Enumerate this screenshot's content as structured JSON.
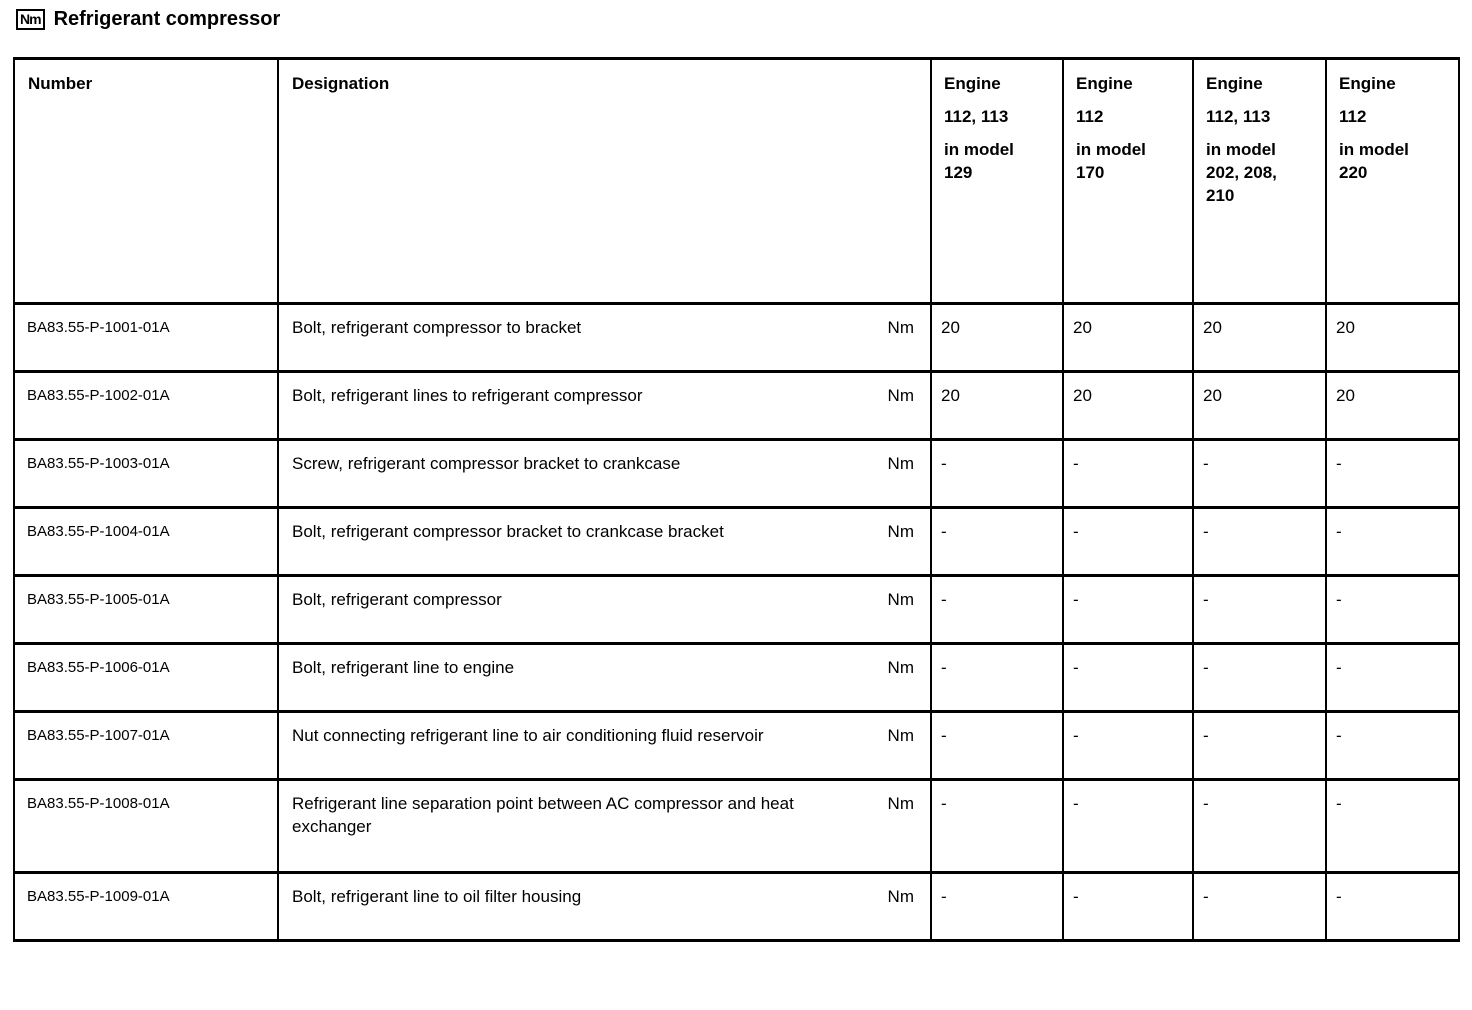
{
  "page": {
    "unit_badge": "Nm",
    "title": "Refrigerant compressor"
  },
  "colors": {
    "text": "#000000",
    "border": "#000000",
    "background": "#ffffff"
  },
  "table": {
    "headers": {
      "number": "Number",
      "designation": "Designation",
      "engines": [
        {
          "engine_label": "Engine",
          "engine_numbers": "112, 113",
          "model_text": "in model 129"
        },
        {
          "engine_label": "Engine",
          "engine_numbers": "112",
          "model_text": "in model 170"
        },
        {
          "engine_label": "Engine",
          "engine_numbers": "112, 113",
          "model_text": "in model 202, 208, 210"
        },
        {
          "engine_label": "Engine",
          "engine_numbers": "112",
          "model_text": "in model 220"
        }
      ]
    },
    "rows": [
      {
        "number": "BA83.55-P-1001-01A",
        "designation": "Bolt, refrigerant compressor to bracket",
        "unit": "Nm",
        "values": [
          "20",
          "20",
          "20",
          "20"
        ]
      },
      {
        "number": "BA83.55-P-1002-01A",
        "designation": "Bolt, refrigerant lines to refrigerant compressor",
        "unit": "Nm",
        "values": [
          "20",
          "20",
          "20",
          "20"
        ]
      },
      {
        "number": "BA83.55-P-1003-01A",
        "designation": "Screw, refrigerant compressor bracket to crankcase",
        "unit": "Nm",
        "values": [
          "-",
          "-",
          "-",
          "-"
        ]
      },
      {
        "number": "BA83.55-P-1004-01A",
        "designation": "Bolt, refrigerant compressor bracket to crankcase bracket",
        "unit": "Nm",
        "values": [
          "-",
          "-",
          "-",
          "-"
        ]
      },
      {
        "number": "BA83.55-P-1005-01A",
        "designation": "Bolt, refrigerant compressor",
        "unit": "Nm",
        "values": [
          "-",
          "-",
          "-",
          "-"
        ]
      },
      {
        "number": "BA83.55-P-1006-01A",
        "designation": "Bolt, refrigerant line to engine",
        "unit": "Nm",
        "values": [
          "-",
          "-",
          "-",
          "-"
        ]
      },
      {
        "number": "BA83.55-P-1007-01A",
        "designation": "Nut connecting refrigerant line to air conditioning fluid reservoir",
        "unit": "Nm",
        "values": [
          "-",
          "-",
          "-",
          "-"
        ]
      },
      {
        "number": "BA83.55-P-1008-01A",
        "designation": "Refrigerant line separation point between AC compressor and heat exchanger",
        "unit": "Nm",
        "values": [
          "-",
          "-",
          "-",
          "-"
        ]
      },
      {
        "number": "BA83.55-P-1009-01A",
        "designation": "Bolt, refrigerant line to oil filter housing",
        "unit": "Nm",
        "values": [
          "-",
          "-",
          "-",
          "-"
        ]
      }
    ]
  }
}
